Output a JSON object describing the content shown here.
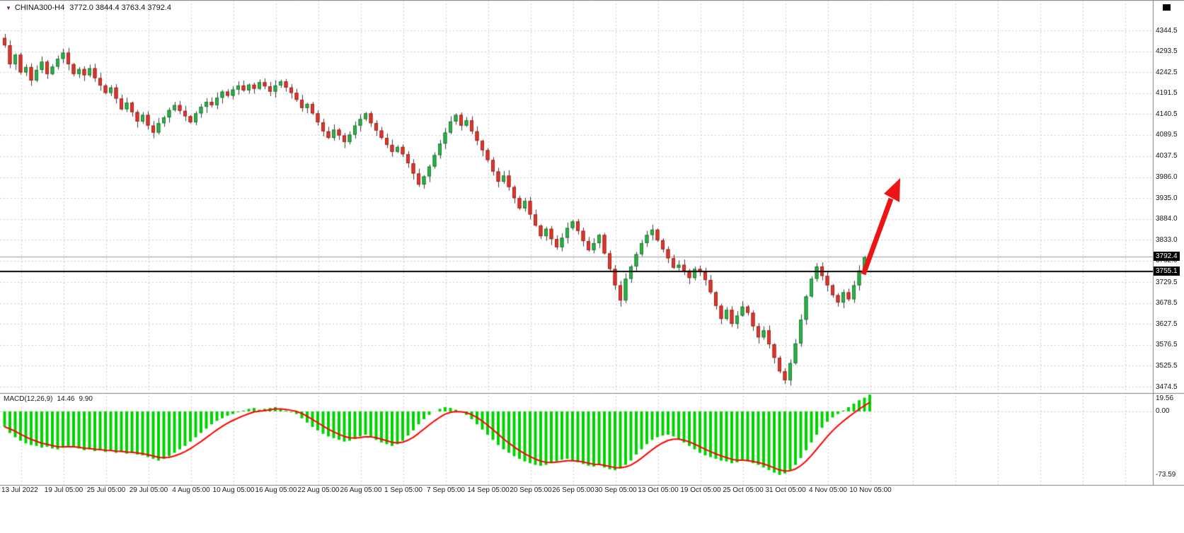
{
  "header": {
    "dropdown_glyph": "▼",
    "symbol_period": "CHINA300-H4",
    "ohlc": "3772.0 3844.4 3763.4 3792.4"
  },
  "colors": {
    "grid": "#c9c9d9",
    "wick": "#3c3c3c",
    "bull_fill": "#2fb24a",
    "bull_border": "#1d7a31",
    "bear_fill": "#e0372e",
    "bear_border": "#9e241d",
    "macd_hist": "#00d400",
    "signal": "#ff0000",
    "hline": "#000000",
    "bid_line": "#9a9a9a",
    "separator": "#808080",
    "badge_bg": "#000000",
    "badge_text": "#ffffff",
    "arrow": "#ec1414"
  },
  "price_axis": {
    "tick_labels": [
      "4344.5",
      "4293.5",
      "4242.5",
      "4191.5",
      "4140.5",
      "4089.5",
      "4037.5",
      "3986.0",
      "3935.0",
      "3884.0",
      "3833.0",
      "3782.0",
      "3729.5",
      "3678.5",
      "3627.5",
      "3576.5",
      "3525.5",
      "3474.5"
    ],
    "badge_bid": "3792.4",
    "badge_line": "3755.1"
  },
  "macd_panel": {
    "label": "MACD(12,26,9)",
    "value_macd": "14.46",
    "value_signal": "9.90",
    "axis_labels": [
      "19.56",
      "0.00",
      "-73.59"
    ]
  },
  "chart_data": {
    "type": "candlestick",
    "title": "CHINA300-H4",
    "timeframe": "H4",
    "x_labels": [
      "13 Jul 2022",
      "19 Jul 05:00",
      "25 Jul 05:00",
      "29 Jul 05:00",
      "4 Aug 05:00",
      "10 Aug 05:00",
      "16 Aug 05:00",
      "22 Aug 05:00",
      "26 Aug 05:00",
      "1 Sep 05:00",
      "7 Sep 05:00",
      "14 Sep 05:00",
      "20 Sep 05:00",
      "26 Sep 05:00",
      "30 Sep 05:00",
      "13 Oct 05:00",
      "19 Oct 05:00",
      "25 Oct 05:00",
      "31 Oct 05:00",
      "4 Nov 05:00",
      "10 Nov 05:00"
    ],
    "price_range": [
      3474.5,
      4344.5
    ],
    "first_open": 4326,
    "closes": [
      4308,
      4262,
      4285,
      4242,
      4255,
      4222,
      4248,
      4268,
      4238,
      4256,
      4275,
      4290,
      4262,
      4238,
      4250,
      4235,
      4252,
      4228,
      4210,
      4192,
      4205,
      4178,
      4152,
      4168,
      4145,
      4122,
      4138,
      4112,
      4095,
      4118,
      4132,
      4150,
      4162,
      4148,
      4135,
      4120,
      4142,
      4158,
      4170,
      4162,
      4180,
      4195,
      4185,
      4200,
      4210,
      4198,
      4212,
      4202,
      4218,
      4208,
      4195,
      4210,
      4220,
      4205,
      4192,
      4175,
      4155,
      4165,
      4142,
      4120,
      4098,
      4082,
      4102,
      4088,
      4072,
      4090,
      4112,
      4128,
      4142,
      4118,
      4100,
      4082,
      4065,
      4048,
      4060,
      4042,
      4020,
      3995,
      3968,
      3988,
      4012,
      4040,
      4068,
      4095,
      4122,
      4138,
      4112,
      4125,
      4098,
      4075,
      4052,
      4028,
      4000,
      3975,
      3990,
      3962,
      3935,
      3910,
      3928,
      3895,
      3868,
      3842,
      3860,
      3835,
      3815,
      3838,
      3862,
      3878,
      3855,
      3830,
      3808,
      3825,
      3845,
      3800,
      3762,
      3722,
      3685,
      3738,
      3768,
      3798,
      3825,
      3845,
      3858,
      3832,
      3810,
      3788,
      3765,
      3772,
      3758,
      3740,
      3762,
      3755,
      3735,
      3705,
      3672,
      3640,
      3662,
      3628,
      3648,
      3670,
      3655,
      3622,
      3595,
      3612,
      3578,
      3545,
      3512,
      3490,
      3532,
      3580,
      3638,
      3695,
      3738,
      3768,
      3745,
      3722,
      3698,
      3680,
      3705,
      3688,
      3722,
      3758,
      3790,
      3792.4
    ],
    "overlays": {
      "horizontal_line_price": 3755.1,
      "bid_price": 3792.4,
      "trend_arrow": "up-right red arrow near last candles"
    },
    "indicator": {
      "name": "MACD(12,26,9)",
      "range": [
        -73.59,
        19.56
      ],
      "current_macd": 14.46,
      "current_signal": 9.9,
      "signal_period": 9,
      "histogram": [
        -18,
        -25,
        -30,
        -34,
        -37,
        -39,
        -40,
        -42,
        -41,
        -43,
        -44,
        -42,
        -40,
        -41,
        -43,
        -45,
        -44,
        -46,
        -45,
        -47,
        -46,
        -48,
        -47,
        -49,
        -48,
        -50,
        -51,
        -53,
        -55,
        -57,
        -55,
        -52,
        -48,
        -44,
        -40,
        -35,
        -30,
        -25,
        -20,
        -15,
        -11,
        -8,
        -5,
        -3,
        -1,
        1,
        3,
        4,
        2,
        3,
        4,
        5,
        3,
        1,
        -1,
        -3,
        -8,
        -13,
        -18,
        -22,
        -26,
        -29,
        -31,
        -33,
        -35,
        -34,
        -32,
        -29,
        -27,
        -30,
        -33,
        -36,
        -38,
        -40,
        -38,
        -34,
        -28,
        -22,
        -15,
        -9,
        -4,
        0,
        3,
        5,
        4,
        2,
        -1,
        -4,
        -9,
        -15,
        -21,
        -27,
        -33,
        -39,
        -44,
        -48,
        -52,
        -55,
        -58,
        -60,
        -62,
        -63,
        -62,
        -60,
        -58,
        -56,
        -55,
        -57,
        -59,
        -61,
        -63,
        -64,
        -62,
        -65,
        -67,
        -68,
        -66,
        -62,
        -57,
        -50,
        -44,
        -38,
        -33,
        -30,
        -28,
        -27,
        -29,
        -32,
        -36,
        -40,
        -44,
        -48,
        -51,
        -53,
        -55,
        -57,
        -58,
        -60,
        -59,
        -57,
        -58,
        -60,
        -62,
        -65,
        -68,
        -71,
        -73.59,
        -72,
        -68,
        -62,
        -54,
        -45,
        -36,
        -27,
        -19,
        -12,
        -7,
        -3,
        1,
        5,
        9,
        13,
        16,
        19.56
      ]
    }
  }
}
